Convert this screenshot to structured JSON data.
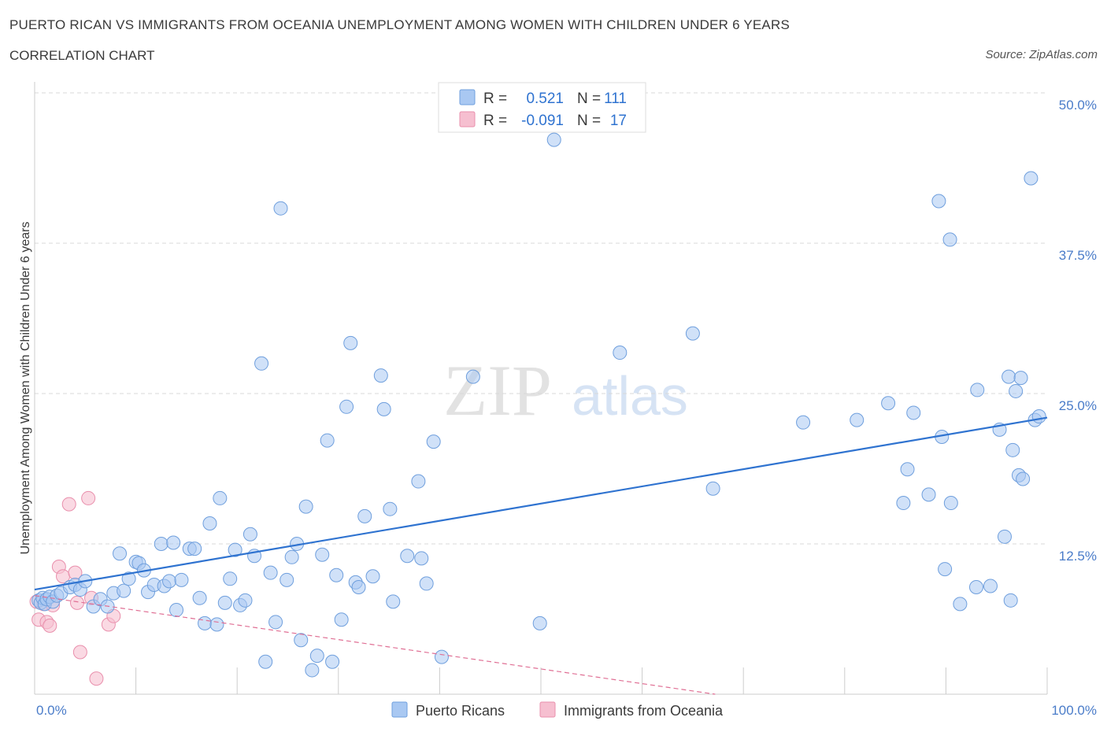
{
  "header": {
    "title": "PUERTO RICAN VS IMMIGRANTS FROM OCEANIA UNEMPLOYMENT AMONG WOMEN WITH CHILDREN UNDER 6 YEARS",
    "subtitle": "CORRELATION CHART",
    "source": "Source: ZipAtlas.com"
  },
  "colors": {
    "blue_fill": "#a9c8f2",
    "blue_stroke": "#6f9fdd",
    "blue_line": "#2f73d0",
    "pink_fill": "#f6bfd0",
    "pink_stroke": "#e98fac",
    "pink_line": "#e07095",
    "tick_color": "#4a7cc9",
    "grid": "#d8d8d8"
  },
  "watermark": {
    "zip": "ZIP",
    "atlas": "atlas"
  },
  "legend": {
    "rows": [
      {
        "r_label": "R =",
        "r_value": "0.521",
        "n_label": "N =",
        "n_value": "111",
        "color": "blue"
      },
      {
        "r_label": "R =",
        "r_value": "-0.091",
        "n_label": "N =",
        "n_value": "17",
        "color": "pink"
      }
    ]
  },
  "bottom_legend": [
    "Puerto Ricans",
    "Immigrants from Oceania"
  ],
  "chart_data": {
    "type": "scatter",
    "title": "PUERTO RICAN VS IMMIGRANTS FROM OCEANIA UNEMPLOYMENT AMONG WOMEN WITH CHILDREN UNDER 6 YEARS",
    "xlabel": "",
    "ylabel": "Unemployment Among Women with Children Under 6 years",
    "xlim": [
      0,
      100
    ],
    "ylim": [
      0,
      50
    ],
    "x_tick_labels": [
      "0.0%",
      "100.0%"
    ],
    "y_ticks": [
      12.5,
      25.0,
      37.5,
      50.0
    ],
    "y_tick_labels": [
      "12.5%",
      "25.0%",
      "37.5%",
      "50.0%"
    ],
    "series": [
      {
        "name": "Puerto Ricans",
        "color": "blue",
        "trend": {
          "x": [
            0,
            100
          ],
          "y": [
            8.7,
            23.0
          ]
        },
        "points": [
          [
            0.4,
            7.8
          ],
          [
            0.6,
            7.6
          ],
          [
            0.8,
            8.0
          ],
          [
            1.0,
            7.5
          ],
          [
            1.2,
            7.9
          ],
          [
            1.5,
            8.1
          ],
          [
            1.8,
            7.7
          ],
          [
            2.2,
            8.2
          ],
          [
            2.6,
            8.4
          ],
          [
            3.5,
            8.9
          ],
          [
            4.0,
            9.1
          ],
          [
            4.5,
            8.7
          ],
          [
            5.0,
            9.4
          ],
          [
            5.8,
            7.3
          ],
          [
            6.5,
            7.9
          ],
          [
            7.2,
            7.3
          ],
          [
            7.8,
            8.4
          ],
          [
            8.4,
            11.7
          ],
          [
            8.8,
            8.6
          ],
          [
            9.3,
            9.6
          ],
          [
            10.0,
            11.0
          ],
          [
            10.3,
            10.9
          ],
          [
            10.8,
            10.3
          ],
          [
            11.2,
            8.5
          ],
          [
            11.8,
            9.1
          ],
          [
            12.5,
            12.5
          ],
          [
            12.8,
            9.0
          ],
          [
            13.3,
            9.4
          ],
          [
            13.7,
            12.6
          ],
          [
            14.0,
            7.0
          ],
          [
            14.5,
            9.5
          ],
          [
            15.3,
            12.1
          ],
          [
            15.8,
            12.1
          ],
          [
            16.3,
            8.0
          ],
          [
            16.8,
            5.9
          ],
          [
            17.3,
            14.2
          ],
          [
            18.0,
            5.8
          ],
          [
            18.3,
            16.3
          ],
          [
            18.8,
            7.6
          ],
          [
            19.3,
            9.6
          ],
          [
            19.8,
            12.0
          ],
          [
            20.3,
            7.4
          ],
          [
            20.8,
            7.8
          ],
          [
            21.3,
            13.3
          ],
          [
            21.7,
            11.5
          ],
          [
            22.4,
            27.5
          ],
          [
            22.8,
            2.7
          ],
          [
            23.3,
            10.1
          ],
          [
            23.8,
            6.0
          ],
          [
            24.3,
            40.4
          ],
          [
            24.9,
            9.5
          ],
          [
            25.4,
            11.4
          ],
          [
            25.9,
            12.5
          ],
          [
            26.3,
            4.5
          ],
          [
            26.8,
            15.6
          ],
          [
            27.4,
            2.0
          ],
          [
            27.9,
            3.2
          ],
          [
            28.4,
            11.6
          ],
          [
            28.9,
            21.1
          ],
          [
            29.4,
            2.7
          ],
          [
            29.8,
            9.9
          ],
          [
            30.3,
            6.2
          ],
          [
            30.8,
            23.9
          ],
          [
            31.2,
            29.2
          ],
          [
            31.7,
            9.3
          ],
          [
            32.0,
            8.9
          ],
          [
            32.6,
            14.8
          ],
          [
            33.4,
            9.8
          ],
          [
            34.2,
            26.5
          ],
          [
            34.5,
            23.7
          ],
          [
            35.1,
            15.4
          ],
          [
            35.4,
            7.7
          ],
          [
            36.8,
            11.5
          ],
          [
            37.9,
            17.7
          ],
          [
            38.2,
            11.3
          ],
          [
            38.7,
            9.2
          ],
          [
            39.4,
            21.0
          ],
          [
            40.2,
            3.1
          ],
          [
            43.3,
            26.4
          ],
          [
            49.9,
            5.9
          ],
          [
            51.3,
            46.1
          ],
          [
            57.8,
            28.4
          ],
          [
            65.0,
            30.0
          ],
          [
            67.0,
            17.1
          ],
          [
            75.9,
            22.6
          ],
          [
            81.2,
            22.8
          ],
          [
            84.3,
            24.2
          ],
          [
            85.8,
            15.9
          ],
          [
            86.2,
            18.7
          ],
          [
            86.8,
            23.4
          ],
          [
            88.3,
            16.6
          ],
          [
            89.3,
            41.0
          ],
          [
            89.6,
            21.4
          ],
          [
            89.9,
            10.4
          ],
          [
            90.4,
            37.8
          ],
          [
            90.5,
            15.9
          ],
          [
            91.4,
            7.5
          ],
          [
            93.0,
            8.9
          ],
          [
            93.1,
            25.3
          ],
          [
            94.4,
            9.0
          ],
          [
            95.3,
            22.0
          ],
          [
            95.8,
            13.1
          ],
          [
            96.2,
            26.4
          ],
          [
            96.4,
            7.8
          ],
          [
            96.6,
            20.3
          ],
          [
            96.9,
            25.2
          ],
          [
            97.2,
            18.2
          ],
          [
            97.4,
            26.3
          ],
          [
            97.6,
            17.9
          ],
          [
            98.4,
            42.9
          ],
          [
            98.8,
            22.8
          ],
          [
            99.2,
            23.1
          ]
        ]
      },
      {
        "name": "Immigrants from Oceania",
        "color": "pink",
        "trend": {
          "x": [
            0,
            100
          ],
          "y": [
            8.2,
            -4.0
          ]
        },
        "points": [
          [
            0.2,
            7.7
          ],
          [
            0.4,
            6.2
          ],
          [
            0.9,
            7.5
          ],
          [
            1.2,
            6.0
          ],
          [
            1.5,
            5.7
          ],
          [
            1.8,
            7.4
          ],
          [
            2.4,
            10.6
          ],
          [
            2.8,
            9.8
          ],
          [
            3.4,
            15.8
          ],
          [
            4.0,
            10.1
          ],
          [
            4.2,
            7.6
          ],
          [
            4.5,
            3.5
          ],
          [
            5.3,
            16.3
          ],
          [
            5.6,
            8.0
          ],
          [
            6.1,
            1.3
          ],
          [
            7.3,
            5.8
          ],
          [
            7.8,
            6.5
          ]
        ]
      }
    ]
  }
}
